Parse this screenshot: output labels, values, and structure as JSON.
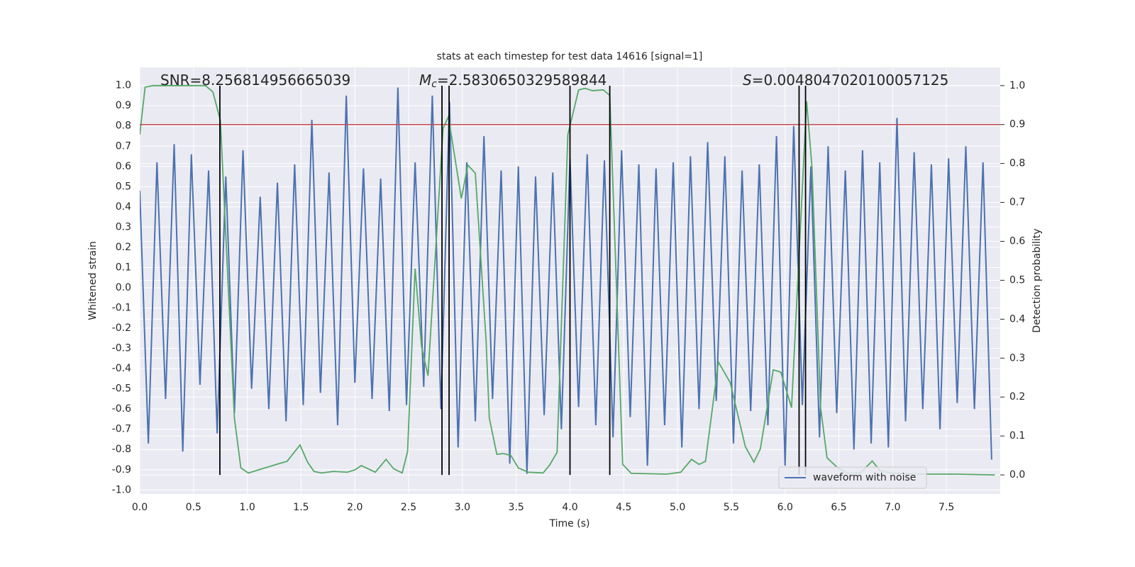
{
  "chart_data": {
    "type": "line",
    "title": "stats at each timestep for test data 14616 [signal=1]",
    "xlabel": "Time (s)",
    "ylabel": "Whitened strain",
    "y2label": "Detection probability",
    "annotations": [
      {
        "text": "SNR=8.256814956665039"
      },
      {
        "symbol": "M",
        "subscript": "c",
        "text": "=2.5830650329589844"
      },
      {
        "symbol": "S",
        "text": "=0.0048047020100057125"
      }
    ],
    "xlim": [
      0,
      8
    ],
    "xticks": [
      {
        "value": 0,
        "label": "0.0"
      },
      0.5,
      {
        "value": 1,
        "label": "1.0"
      },
      1.5,
      {
        "value": 2,
        "label": "2.0"
      },
      2.5,
      {
        "value": 3,
        "label": "3.0"
      },
      3.5,
      {
        "value": 4,
        "label": "4.0"
      },
      4.5,
      {
        "value": 5,
        "label": "5.0"
      },
      5.5,
      {
        "value": 6,
        "label": "6.0"
      },
      6.5,
      {
        "value": 7,
        "label": "7.0"
      },
      7.5
    ],
    "ylim": [
      -1.02,
      1.09
    ],
    "yticks": [
      {
        "value": -1,
        "label": "-1.0"
      },
      -0.9,
      -0.8,
      -0.7,
      -0.6,
      -0.5,
      -0.4,
      -0.3,
      -0.2,
      -0.1,
      {
        "value": 0,
        "label": "0.0"
      },
      0.1,
      0.2,
      0.3,
      0.4,
      0.5,
      0.6,
      0.7,
      0.8,
      0.9,
      {
        "value": 1,
        "label": "1.0"
      }
    ],
    "y2lim": [
      -0.049,
      1.047
    ],
    "y2ticks": [
      {
        "value": 0,
        "label": "0.0"
      },
      0.1,
      0.2,
      0.3,
      0.4,
      0.5,
      0.6,
      0.7,
      0.8,
      0.9,
      {
        "value": 1,
        "label": "1.0"
      }
    ],
    "grid": true,
    "legend": "lower right",
    "series": [
      {
        "name": "waveform with noise",
        "color": "#4c72b0",
        "x": [
          0,
          0.08,
          0.16,
          0.24,
          0.32,
          0.4,
          0.48,
          0.56,
          0.64,
          0.72,
          0.8,
          0.88,
          0.96,
          1.04,
          1.12,
          1.2,
          1.28,
          1.36,
          1.44,
          1.52,
          1.6,
          1.68,
          1.76,
          1.84,
          1.92,
          2,
          2.08,
          2.16,
          2.24,
          2.32,
          2.4,
          2.48,
          2.56,
          2.64,
          2.72,
          2.8,
          2.88,
          2.96,
          3.04,
          3.12,
          3.2,
          3.28,
          3.36,
          3.44,
          3.52,
          3.6,
          3.68,
          3.76,
          3.84,
          3.92,
          4,
          4.08,
          4.16,
          4.24,
          4.32,
          4.4,
          4.48,
          4.56,
          4.64,
          4.72,
          4.8,
          4.88,
          4.96,
          5.04,
          5.12,
          5.2,
          5.28,
          5.36,
          5.44,
          5.52,
          5.6,
          5.68,
          5.76,
          5.84,
          5.92,
          6,
          6.08,
          6.16,
          6.24,
          6.32,
          6.4,
          6.48,
          6.56,
          6.64,
          6.72,
          6.8,
          6.88,
          6.96,
          7.04,
          7.12,
          7.2,
          7.28,
          7.36,
          7.44,
          7.52,
          7.6,
          7.68,
          7.76,
          7.84,
          7.92
        ],
        "values": [
          0.48,
          -0.77,
          0.62,
          -0.55,
          0.71,
          -0.81,
          0.66,
          -0.48,
          0.58,
          -0.72,
          0.55,
          -0.62,
          0.68,
          -0.5,
          0.45,
          -0.6,
          0.52,
          -0.66,
          0.61,
          -0.58,
          0.83,
          -0.52,
          0.57,
          -0.68,
          0.95,
          -0.47,
          0.59,
          -0.55,
          0.54,
          -0.61,
          0.99,
          -0.58,
          0.62,
          -0.49,
          0.95,
          -0.6,
          0.92,
          -0.79,
          0.62,
          -0.66,
          0.75,
          -0.55,
          0.58,
          -0.87,
          0.6,
          -0.92,
          0.55,
          -0.63,
          0.57,
          -0.7,
          0.64,
          -0.59,
          0.66,
          -0.68,
          0.63,
          -0.74,
          0.68,
          -0.64,
          0.61,
          -0.88,
          0.59,
          -0.68,
          0.62,
          -0.79,
          0.65,
          -0.6,
          0.72,
          -0.56,
          0.65,
          -0.77,
          0.58,
          -0.61,
          0.61,
          -0.68,
          0.75,
          -0.88,
          0.8,
          -0.58,
          0.6,
          -0.74,
          0.7,
          -0.62,
          0.58,
          -0.8,
          0.68,
          -0.77,
          0.62,
          -0.79,
          0.84,
          -0.66,
          0.67,
          -0.6,
          0.61,
          -0.7,
          0.64,
          -0.57,
          0.7,
          -0.6,
          0.62,
          -0.85
        ]
      },
      {
        "color": "#55a868",
        "axis": "y2",
        "x": [
          0,
          0.05,
          0.12,
          0.61,
          0.68,
          0.75,
          0.88,
          0.94,
          1.01,
          1.27,
          1.37,
          1.49,
          1.56,
          1.62,
          1.69,
          1.8,
          1.93,
          2.0,
          2.06,
          2.19,
          2.29,
          2.36,
          2.44,
          2.49,
          2.56,
          2.62,
          2.68,
          2.82,
          2.87,
          2.99,
          3.05,
          3.12,
          3.22,
          3.25,
          3.32,
          3.38,
          3.45,
          3.52,
          3.61,
          3.75,
          3.81,
          3.88,
          3.98,
          4.08,
          4.14,
          4.21,
          4.31,
          4.37,
          4.49,
          4.57,
          4.9,
          5.03,
          5.13,
          5.2,
          5.26,
          5.38,
          5.49,
          5.63,
          5.71,
          5.77,
          5.89,
          5.96,
          6.06,
          6.2,
          6.25,
          6.33,
          6.39,
          6.49,
          6.58,
          6.7,
          6.81,
          6.88,
          6.98,
          7.21,
          7.6,
          7.95
        ],
        "values": [
          0.874,
          0.996,
          1.0,
          1.0,
          0.984,
          0.91,
          0.146,
          0.018,
          0.005,
          0.027,
          0.035,
          0.077,
          0.033,
          0.009,
          0.005,
          0.009,
          0.007,
          0.013,
          0.024,
          0.007,
          0.04,
          0.016,
          0.005,
          0.06,
          0.53,
          0.33,
          0.255,
          0.89,
          0.92,
          0.71,
          0.796,
          0.775,
          0.345,
          0.146,
          0.053,
          0.055,
          0.05,
          0.018,
          0.007,
          0.005,
          0.025,
          0.058,
          0.874,
          0.989,
          0.993,
          0.987,
          0.989,
          0.975,
          0.027,
          0.004,
          0.002,
          0.007,
          0.04,
          0.027,
          0.035,
          0.29,
          0.237,
          0.073,
          0.033,
          0.067,
          0.27,
          0.264,
          0.173,
          0.96,
          0.79,
          0.173,
          0.044,
          0.018,
          0.004,
          0.005,
          0.036,
          0.011,
          0.005,
          0.002,
          0.002,
          0.0
        ]
      }
    ],
    "hlines": [
      {
        "value": 0.9,
        "axis": "y2",
        "color": "#c44e52"
      }
    ],
    "vlines": {
      "x": [
        0.745,
        2.81,
        2.876,
        4.0,
        4.37,
        6.13,
        6.19
      ],
      "ymin": 0,
      "ymax": 1,
      "axis": "y2",
      "color": "#000000"
    }
  }
}
